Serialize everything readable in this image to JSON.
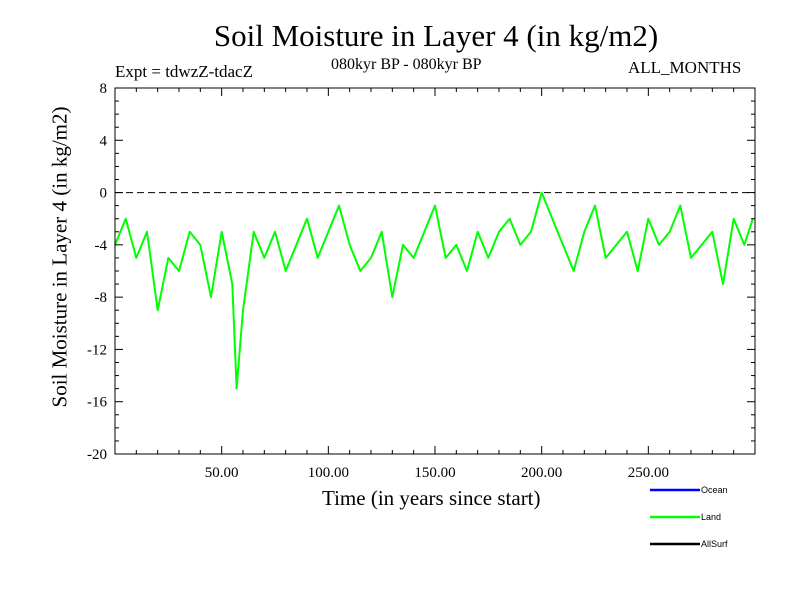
{
  "chart_data": {
    "type": "line",
    "title": "Soil Moisture in Layer 4 (in kg/m2)",
    "subtitle_left": "Expt = tdwzZ-tdacZ",
    "subtitle_center": "080kyr BP - 080kyr BP",
    "subtitle_right": "ALL_MONTHS",
    "xlabel": "Time (in years since start)",
    "ylabel": "Soil Moisture in Layer 4 (in kg/m2)",
    "xlim": [
      0,
      300
    ],
    "ylim": [
      -20,
      8
    ],
    "x_ticks": [
      50,
      100,
      150,
      200,
      250
    ],
    "x_tick_labels": [
      "50.00",
      "100.00",
      "150.00",
      "200.00",
      "250.00"
    ],
    "y_ticks": [
      8,
      4,
      0,
      -4,
      -8,
      -12,
      -16,
      -20
    ],
    "y_tick_labels": [
      "8",
      "4",
      "0",
      "-4",
      "-8",
      "-12",
      "-16",
      "-20"
    ],
    "reference_line": {
      "y": 0,
      "style": "dashed",
      "color": "#000000"
    },
    "legend_placement": "bottom-right",
    "series": [
      {
        "name": "Ocean",
        "color": "#0000ff",
        "values": []
      },
      {
        "name": "Land",
        "color": "#00ff00",
        "x": [
          0,
          5,
          10,
          15,
          20,
          25,
          30,
          35,
          40,
          45,
          50,
          55,
          57,
          60,
          65,
          70,
          75,
          80,
          85,
          90,
          95,
          100,
          105,
          110,
          115,
          120,
          125,
          130,
          135,
          140,
          145,
          150,
          155,
          160,
          165,
          170,
          175,
          180,
          185,
          190,
          195,
          200,
          205,
          210,
          215,
          220,
          225,
          230,
          235,
          240,
          245,
          250,
          255,
          260,
          265,
          270,
          275,
          280,
          285,
          290,
          295,
          299
        ],
        "values": [
          -4,
          -2,
          -5,
          -3,
          -9,
          -5,
          -6,
          -3,
          -4,
          -8,
          -3,
          -7,
          -15,
          -9,
          -3,
          -5,
          -3,
          -6,
          -4,
          -2,
          -5,
          -3,
          -1,
          -4,
          -6,
          -5,
          -3,
          -8,
          -4,
          -5,
          -3,
          -1,
          -5,
          -4,
          -6,
          -3,
          -5,
          -3,
          -2,
          -4,
          -3,
          0,
          -2,
          -4,
          -6,
          -3,
          -1,
          -5,
          -4,
          -3,
          -6,
          -2,
          -4,
          -3,
          -1,
          -5,
          -4,
          -3,
          -7,
          -2,
          -4,
          -2
        ]
      },
      {
        "name": "AllSurf",
        "color": "#000000",
        "values": []
      }
    ]
  }
}
